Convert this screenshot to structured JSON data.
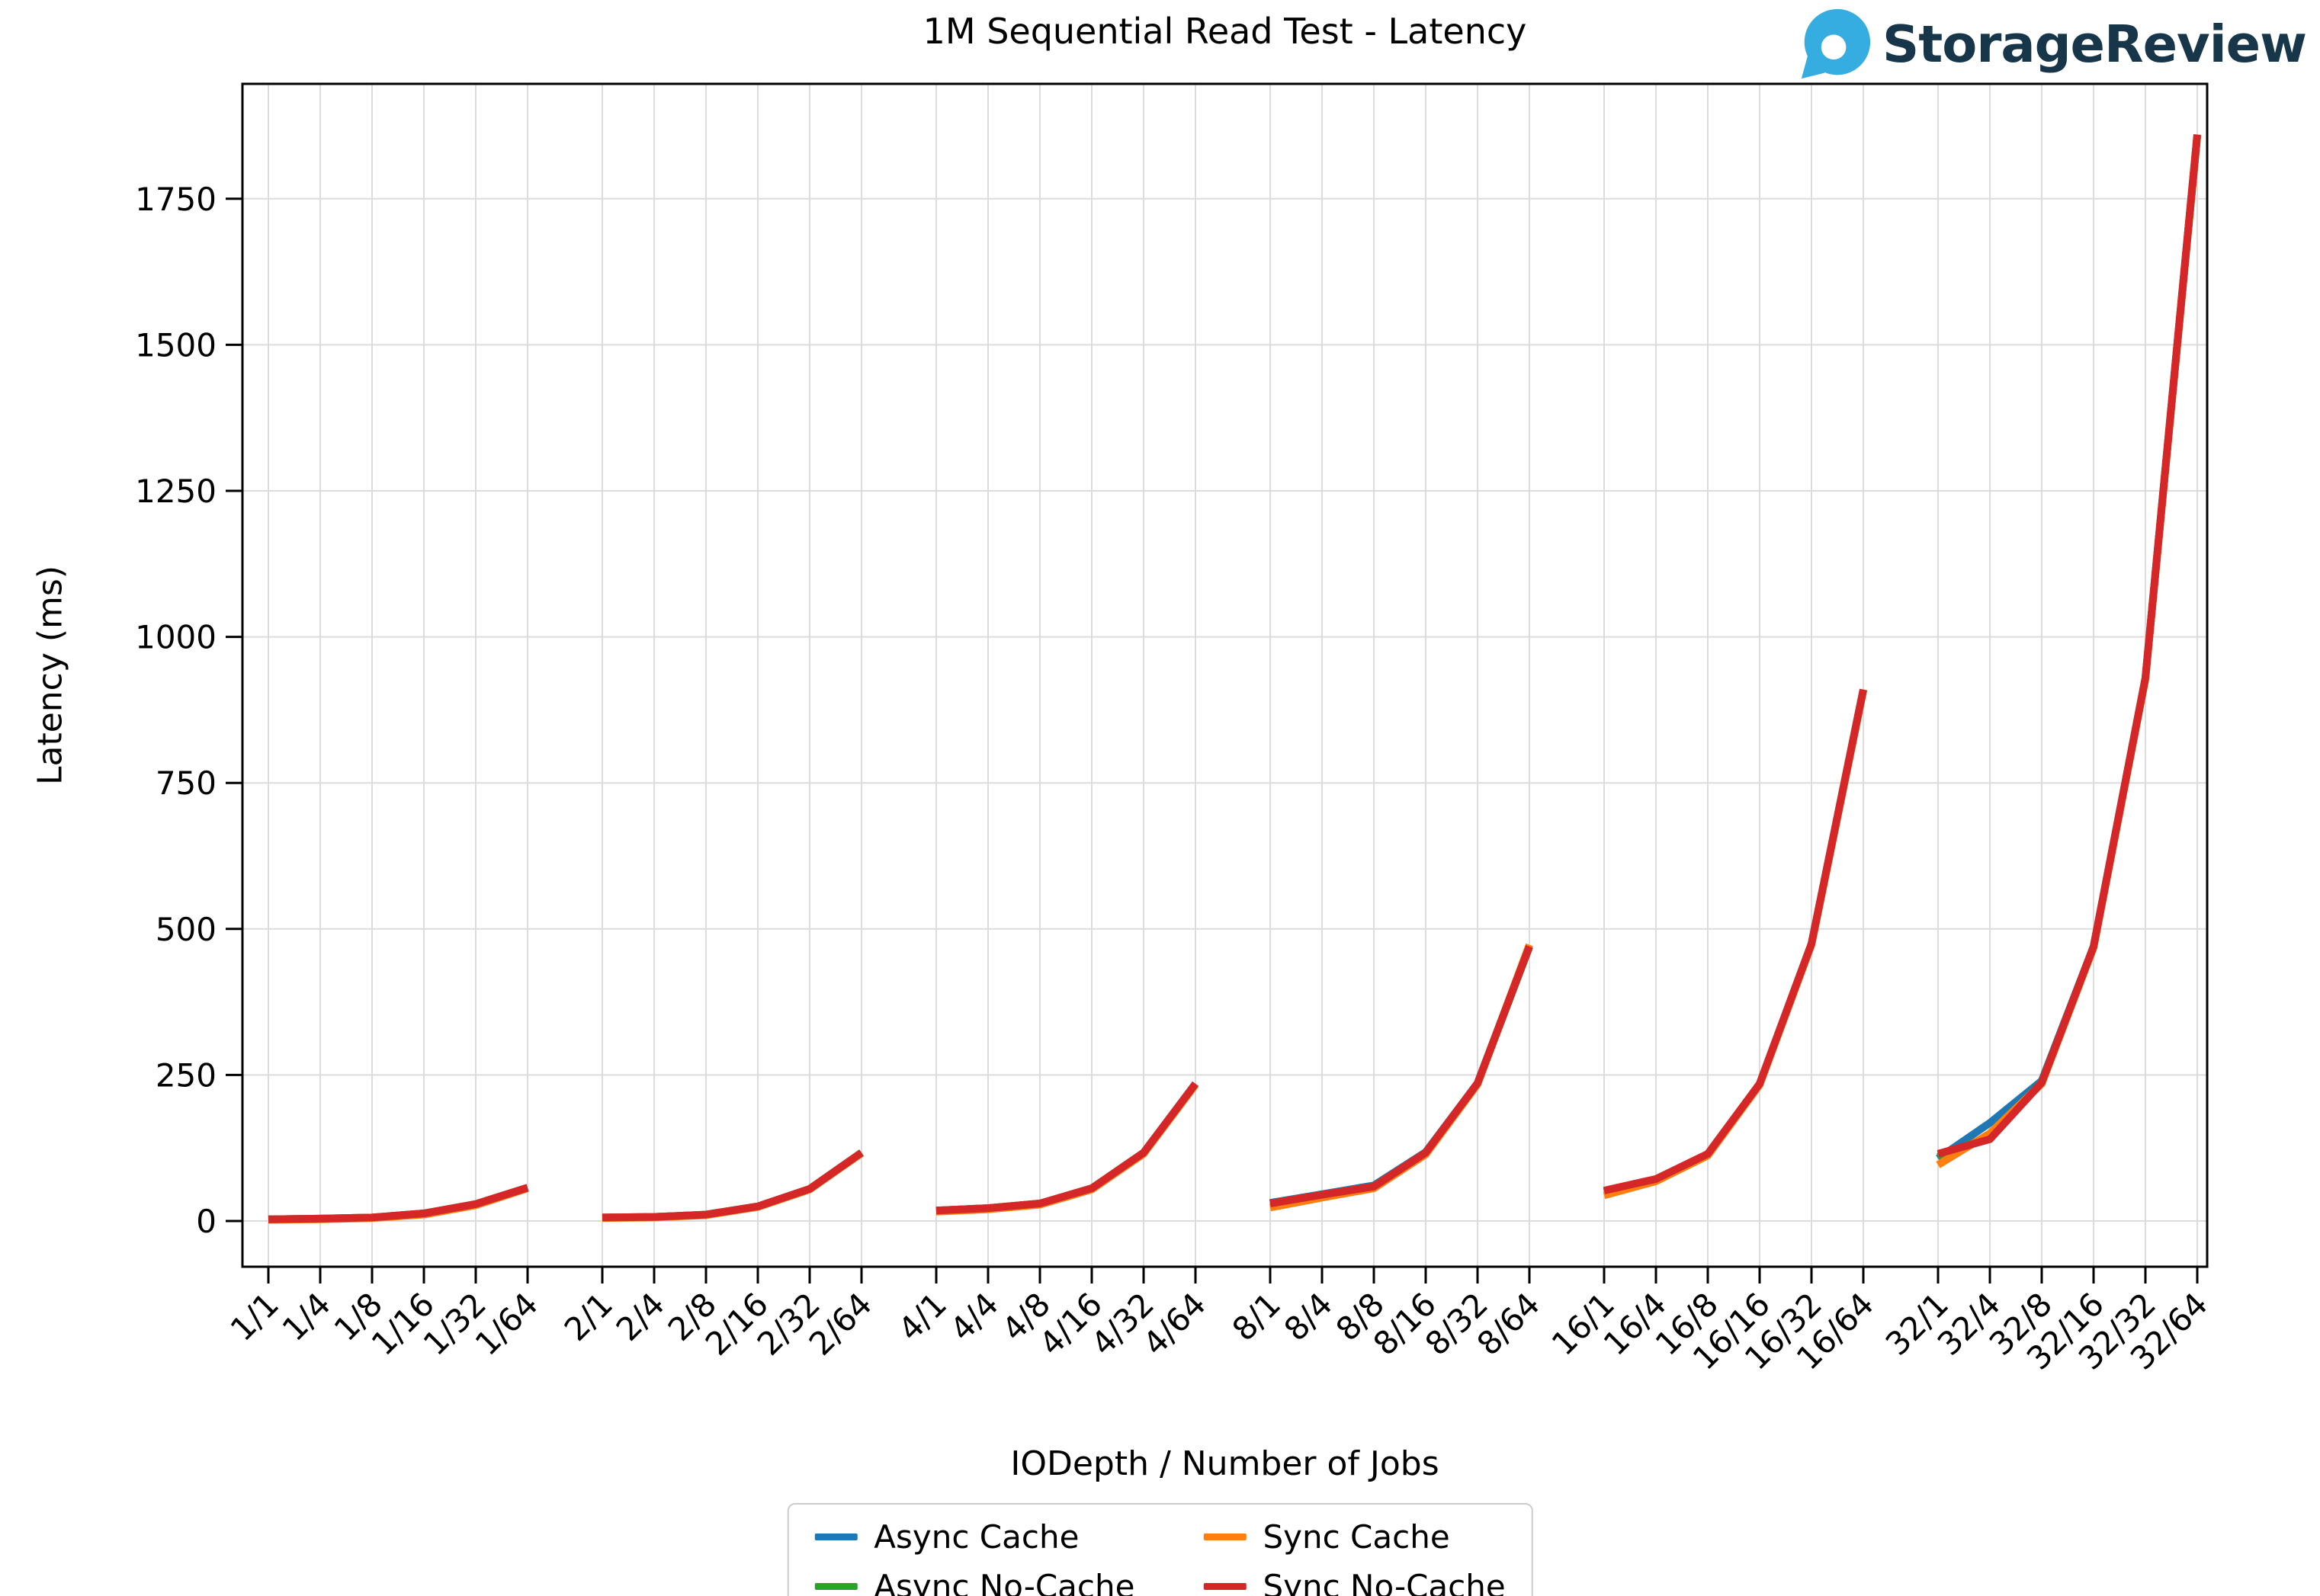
{
  "logo": {
    "text": "StorageReview",
    "icon_color": "#35ade1",
    "text_color": "#17364a"
  },
  "colors": {
    "background": "#ffffff",
    "grid": "#dcdcdc",
    "spine": "#000000",
    "tick_text": "#000000",
    "legend_border": "#cccccc"
  },
  "chart_data": {
    "type": "line",
    "title": "1M Sequential Read Test - Latency",
    "xlabel": "IODepth / Number of Jobs",
    "ylabel": "Latency (ms)",
    "grid": true,
    "legend_position": "bottom center, 2 columns",
    "ylim": [
      -78,
      1947
    ],
    "yticks": [
      0,
      250,
      500,
      750,
      1000,
      1250,
      1500,
      1750
    ],
    "group_size": 6,
    "categories": [
      "1/1",
      "1/4",
      "1/8",
      "1/16",
      "1/32",
      "1/64",
      "2/1",
      "2/4",
      "2/8",
      "2/16",
      "2/32",
      "2/64",
      "4/1",
      "4/4",
      "4/8",
      "4/16",
      "4/32",
      "4/64",
      "8/1",
      "8/4",
      "8/8",
      "8/16",
      "8/32",
      "8/64",
      "16/1",
      "16/4",
      "16/8",
      "16/16",
      "16/32",
      "16/64",
      "32/1",
      "32/4",
      "32/8",
      "32/16",
      "32/32",
      "32/64"
    ],
    "series": [
      {
        "name": "Async Cache",
        "color": "#1f77b4",
        "values": [
          3,
          4,
          6,
          13,
          29,
          57,
          6,
          7,
          11,
          25,
          55,
          117,
          18,
          22,
          30,
          56,
          117,
          235,
          31,
          46,
          61,
          118,
          236,
          470,
          50,
          71,
          114,
          234,
          474,
          909,
          107,
          168,
          240,
          470,
          929,
          1858
        ]
      },
      {
        "name": "Async No-Cache",
        "color": "#2ca02c",
        "values": [
          3,
          4,
          6,
          13,
          29,
          57,
          6,
          7,
          11,
          25,
          55,
          117,
          18,
          22,
          30,
          56,
          117,
          234,
          30,
          45,
          59,
          117,
          235,
          469,
          50,
          71,
          114,
          234,
          474,
          909,
          110,
          145,
          237,
          469,
          929,
          1857
        ]
      },
      {
        "name": "Sync Cache",
        "color": "#ff7f0e",
        "values": [
          2,
          3,
          5,
          11,
          27,
          56,
          5,
          6,
          10,
          24,
          54,
          116,
          16,
          20,
          28,
          54,
          115,
          233,
          23,
          40,
          56,
          114,
          234,
          473,
          44,
          68,
          112,
          233,
          473,
          908,
          96,
          150,
          235,
          468,
          928,
          1859
        ]
      },
      {
        "name": "Sync No-Cache",
        "color": "#d62728",
        "values": [
          3,
          4,
          6,
          13,
          29,
          57,
          6,
          7,
          11,
          25,
          55,
          117,
          18,
          22,
          30,
          56,
          117,
          235,
          30,
          45,
          59,
          117,
          236,
          470,
          52,
          72,
          115,
          235,
          475,
          910,
          115,
          140,
          237,
          470,
          930,
          1860
        ]
      }
    ],
    "legend_display_order": [
      0,
      2,
      1,
      3
    ]
  }
}
